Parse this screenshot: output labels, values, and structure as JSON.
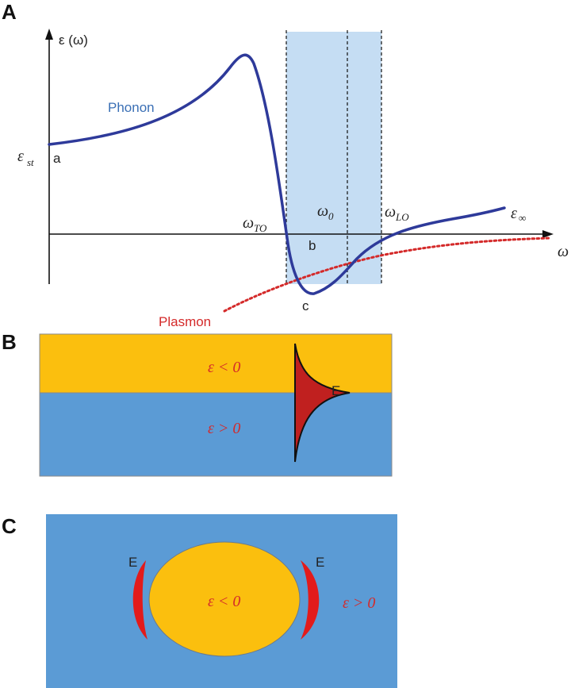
{
  "panel_a": {
    "letter": "A",
    "y_axis_label": "ε (ω)",
    "x_axis_label": "ω",
    "phonon_label": "Phonon",
    "plasmon_label": "Plasmon",
    "eps_static": {
      "main": "ε",
      "sub": "st"
    },
    "eps_inf": {
      "main": "ε",
      "sub": "∞"
    },
    "omega_to": {
      "main": "ω",
      "sub": "TO"
    },
    "omega_0": {
      "main": "ω",
      "sub": "0"
    },
    "omega_lo": {
      "main": "ω",
      "sub": "LO"
    },
    "point_a": "a",
    "point_b": "b",
    "point_c": "c",
    "colors": {
      "phonon": "#2e3a9a",
      "plasmon": "#d42a2a",
      "band": "#c5ddf3",
      "phonon_label": "#3a6fb5"
    }
  },
  "panel_b": {
    "letter": "B",
    "top_label": "ε < 0",
    "bottom_label": "ε > 0",
    "field_label": "E",
    "colors": {
      "top": "#fbbf0e",
      "bottom": "#5b9bd5",
      "field": "#c0201f"
    }
  },
  "panel_c": {
    "letter": "C",
    "inner_label": "ε < 0",
    "outer_label": "ε > 0",
    "field_left": "E",
    "field_right": "E",
    "colors": {
      "outer": "#5b9bd5",
      "inner": "#fbbf0e",
      "field": "#e21b1b"
    }
  }
}
